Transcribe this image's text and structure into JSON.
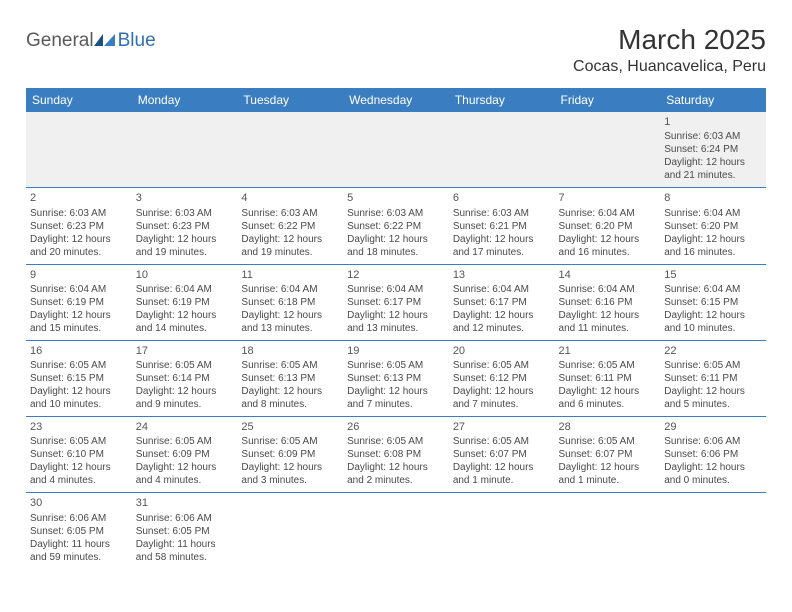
{
  "logo": {
    "part1": "General",
    "part2": "Blue"
  },
  "title": "March 2025",
  "location": "Cocas, Huancavelica, Peru",
  "colors": {
    "header_bg": "#3a7ec1",
    "header_text": "#ffffff",
    "rule": "#3a7ec1",
    "blank_bg": "#f0f0f0",
    "body_text": "#4a4a4a",
    "logo_gray": "#5a5a5a",
    "logo_blue": "#2f6fb0"
  },
  "typography": {
    "title_fontsize": 28,
    "location_fontsize": 16,
    "weekday_fontsize": 12,
    "daynum_fontsize": 11,
    "cell_fontsize": 10
  },
  "weekdays": [
    "Sunday",
    "Monday",
    "Tuesday",
    "Wednesday",
    "Thursday",
    "Friday",
    "Saturday"
  ],
  "weeks": [
    [
      null,
      null,
      null,
      null,
      null,
      null,
      {
        "n": "1",
        "sunrise": "Sunrise: 6:03 AM",
        "sunset": "Sunset: 6:24 PM",
        "day1": "Daylight: 12 hours",
        "day2": "and 21 minutes."
      }
    ],
    [
      {
        "n": "2",
        "sunrise": "Sunrise: 6:03 AM",
        "sunset": "Sunset: 6:23 PM",
        "day1": "Daylight: 12 hours",
        "day2": "and 20 minutes."
      },
      {
        "n": "3",
        "sunrise": "Sunrise: 6:03 AM",
        "sunset": "Sunset: 6:23 PM",
        "day1": "Daylight: 12 hours",
        "day2": "and 19 minutes."
      },
      {
        "n": "4",
        "sunrise": "Sunrise: 6:03 AM",
        "sunset": "Sunset: 6:22 PM",
        "day1": "Daylight: 12 hours",
        "day2": "and 19 minutes."
      },
      {
        "n": "5",
        "sunrise": "Sunrise: 6:03 AM",
        "sunset": "Sunset: 6:22 PM",
        "day1": "Daylight: 12 hours",
        "day2": "and 18 minutes."
      },
      {
        "n": "6",
        "sunrise": "Sunrise: 6:03 AM",
        "sunset": "Sunset: 6:21 PM",
        "day1": "Daylight: 12 hours",
        "day2": "and 17 minutes."
      },
      {
        "n": "7",
        "sunrise": "Sunrise: 6:04 AM",
        "sunset": "Sunset: 6:20 PM",
        "day1": "Daylight: 12 hours",
        "day2": "and 16 minutes."
      },
      {
        "n": "8",
        "sunrise": "Sunrise: 6:04 AM",
        "sunset": "Sunset: 6:20 PM",
        "day1": "Daylight: 12 hours",
        "day2": "and 16 minutes."
      }
    ],
    [
      {
        "n": "9",
        "sunrise": "Sunrise: 6:04 AM",
        "sunset": "Sunset: 6:19 PM",
        "day1": "Daylight: 12 hours",
        "day2": "and 15 minutes."
      },
      {
        "n": "10",
        "sunrise": "Sunrise: 6:04 AM",
        "sunset": "Sunset: 6:19 PM",
        "day1": "Daylight: 12 hours",
        "day2": "and 14 minutes."
      },
      {
        "n": "11",
        "sunrise": "Sunrise: 6:04 AM",
        "sunset": "Sunset: 6:18 PM",
        "day1": "Daylight: 12 hours",
        "day2": "and 13 minutes."
      },
      {
        "n": "12",
        "sunrise": "Sunrise: 6:04 AM",
        "sunset": "Sunset: 6:17 PM",
        "day1": "Daylight: 12 hours",
        "day2": "and 13 minutes."
      },
      {
        "n": "13",
        "sunrise": "Sunrise: 6:04 AM",
        "sunset": "Sunset: 6:17 PM",
        "day1": "Daylight: 12 hours",
        "day2": "and 12 minutes."
      },
      {
        "n": "14",
        "sunrise": "Sunrise: 6:04 AM",
        "sunset": "Sunset: 6:16 PM",
        "day1": "Daylight: 12 hours",
        "day2": "and 11 minutes."
      },
      {
        "n": "15",
        "sunrise": "Sunrise: 6:04 AM",
        "sunset": "Sunset: 6:15 PM",
        "day1": "Daylight: 12 hours",
        "day2": "and 10 minutes."
      }
    ],
    [
      {
        "n": "16",
        "sunrise": "Sunrise: 6:05 AM",
        "sunset": "Sunset: 6:15 PM",
        "day1": "Daylight: 12 hours",
        "day2": "and 10 minutes."
      },
      {
        "n": "17",
        "sunrise": "Sunrise: 6:05 AM",
        "sunset": "Sunset: 6:14 PM",
        "day1": "Daylight: 12 hours",
        "day2": "and 9 minutes."
      },
      {
        "n": "18",
        "sunrise": "Sunrise: 6:05 AM",
        "sunset": "Sunset: 6:13 PM",
        "day1": "Daylight: 12 hours",
        "day2": "and 8 minutes."
      },
      {
        "n": "19",
        "sunrise": "Sunrise: 6:05 AM",
        "sunset": "Sunset: 6:13 PM",
        "day1": "Daylight: 12 hours",
        "day2": "and 7 minutes."
      },
      {
        "n": "20",
        "sunrise": "Sunrise: 6:05 AM",
        "sunset": "Sunset: 6:12 PM",
        "day1": "Daylight: 12 hours",
        "day2": "and 7 minutes."
      },
      {
        "n": "21",
        "sunrise": "Sunrise: 6:05 AM",
        "sunset": "Sunset: 6:11 PM",
        "day1": "Daylight: 12 hours",
        "day2": "and 6 minutes."
      },
      {
        "n": "22",
        "sunrise": "Sunrise: 6:05 AM",
        "sunset": "Sunset: 6:11 PM",
        "day1": "Daylight: 12 hours",
        "day2": "and 5 minutes."
      }
    ],
    [
      {
        "n": "23",
        "sunrise": "Sunrise: 6:05 AM",
        "sunset": "Sunset: 6:10 PM",
        "day1": "Daylight: 12 hours",
        "day2": "and 4 minutes."
      },
      {
        "n": "24",
        "sunrise": "Sunrise: 6:05 AM",
        "sunset": "Sunset: 6:09 PM",
        "day1": "Daylight: 12 hours",
        "day2": "and 4 minutes."
      },
      {
        "n": "25",
        "sunrise": "Sunrise: 6:05 AM",
        "sunset": "Sunset: 6:09 PM",
        "day1": "Daylight: 12 hours",
        "day2": "and 3 minutes."
      },
      {
        "n": "26",
        "sunrise": "Sunrise: 6:05 AM",
        "sunset": "Sunset: 6:08 PM",
        "day1": "Daylight: 12 hours",
        "day2": "and 2 minutes."
      },
      {
        "n": "27",
        "sunrise": "Sunrise: 6:05 AM",
        "sunset": "Sunset: 6:07 PM",
        "day1": "Daylight: 12 hours",
        "day2": "and 1 minute."
      },
      {
        "n": "28",
        "sunrise": "Sunrise: 6:05 AM",
        "sunset": "Sunset: 6:07 PM",
        "day1": "Daylight: 12 hours",
        "day2": "and 1 minute."
      },
      {
        "n": "29",
        "sunrise": "Sunrise: 6:06 AM",
        "sunset": "Sunset: 6:06 PM",
        "day1": "Daylight: 12 hours",
        "day2": "and 0 minutes."
      }
    ],
    [
      {
        "n": "30",
        "sunrise": "Sunrise: 6:06 AM",
        "sunset": "Sunset: 6:05 PM",
        "day1": "Daylight: 11 hours",
        "day2": "and 59 minutes."
      },
      {
        "n": "31",
        "sunrise": "Sunrise: 6:06 AM",
        "sunset": "Sunset: 6:05 PM",
        "day1": "Daylight: 11 hours",
        "day2": "and 58 minutes."
      },
      null,
      null,
      null,
      null,
      null
    ]
  ]
}
